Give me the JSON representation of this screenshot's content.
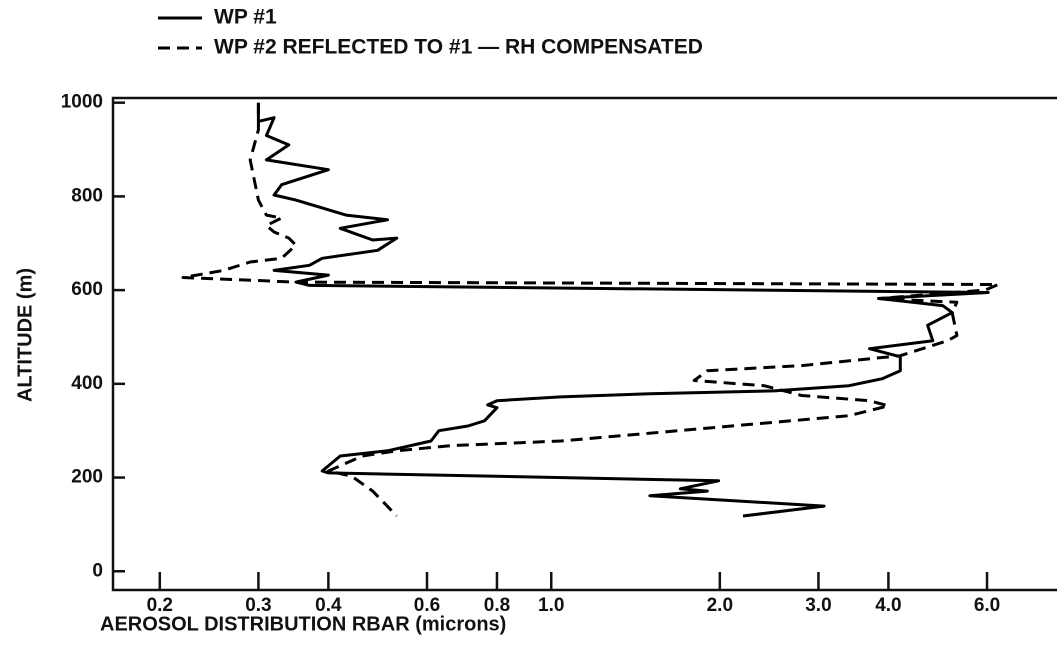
{
  "chart_data": {
    "type": "line",
    "xlabel": "AEROSOL DISTRIBUTION RBAR (microns)",
    "ylabel": "ALTITUDE (m)",
    "xscale": "log",
    "xlim": [
      0.165,
      8
    ],
    "ylim": [
      -40,
      1010
    ],
    "xticks": [
      0.2,
      0.3,
      0.4,
      0.6,
      0.8,
      {
        "value": 1,
        "label": "1.0"
      },
      {
        "value": 2,
        "label": "2.0"
      },
      {
        "value": 3,
        "label": "3.0"
      },
      {
        "value": 4,
        "label": "4.0"
      },
      {
        "value": 6,
        "label": "6.0"
      }
    ],
    "yticks": [
      0,
      200,
      400,
      600,
      800,
      1000
    ],
    "legend": "top-left",
    "series": [
      {
        "name": "WP #1",
        "color": "#000000",
        "linestyle": "solid",
        "x": [
          0.3,
          0.3,
          0.32,
          0.31,
          0.34,
          0.31,
          0.4,
          0.33,
          0.32,
          0.35,
          0.43,
          0.51,
          0.42,
          0.48,
          0.53,
          0.49,
          0.39,
          0.37,
          0.32,
          0.4,
          0.35,
          0.37,
          6.03,
          3.84,
          5.0,
          5.2,
          4.7,
          4.8,
          3.7,
          4.2,
          4.2,
          3.9,
          3.4,
          2.5,
          1.5,
          1.04,
          0.8,
          0.77,
          0.8,
          0.76,
          0.71,
          0.63,
          0.61,
          0.51,
          0.42,
          0.39,
          0.4,
          1.99,
          1.7,
          1.9,
          1.5,
          3.07,
          2.2
        ],
        "values": [
          1000,
          960,
          968,
          930,
          910,
          878,
          857,
          825,
          803,
          792,
          760,
          750,
          732,
          707,
          711,
          685,
          668,
          653,
          642,
          632,
          617,
          610,
          595,
          582,
          567,
          552,
          525,
          492,
          475,
          458,
          428,
          411,
          396,
          385,
          379,
          372,
          364,
          355,
          349,
          321,
          310,
          300,
          278,
          257,
          246,
          214,
          210,
          193,
          176,
          171,
          161,
          139,
          118
        ]
      },
      {
        "name": "WP #2 REFLECTED TO #1 — RH COMPENSATED",
        "color": "#000000",
        "linestyle": "dashed",
        "x": [
          0.3,
          0.3,
          0.29,
          0.3,
          0.31,
          0.33,
          0.31,
          0.32,
          0.34,
          0.35,
          0.33,
          0.29,
          0.26,
          0.22,
          0.35,
          6.28,
          5.95,
          3.85,
          5.3,
          5.2,
          5.3,
          5.1,
          4.2,
          2.8,
          1.9,
          1.8,
          2.4,
          2.8,
          3.7,
          4.0,
          3.4,
          1.04,
          0.66,
          0.53,
          0.46,
          0.4,
          0.44,
          0.48,
          0.53
        ],
        "values": [
          1000,
          942,
          878,
          792,
          760,
          754,
          738,
          724,
          711,
          696,
          668,
          660,
          642,
          627,
          617,
          612,
          600,
          582,
          574,
          552,
          503,
          492,
          460,
          439,
          428,
          407,
          396,
          375,
          364,
          353,
          332,
          278,
          268,
          257,
          246,
          214,
          203,
          171,
          118
        ]
      }
    ]
  }
}
